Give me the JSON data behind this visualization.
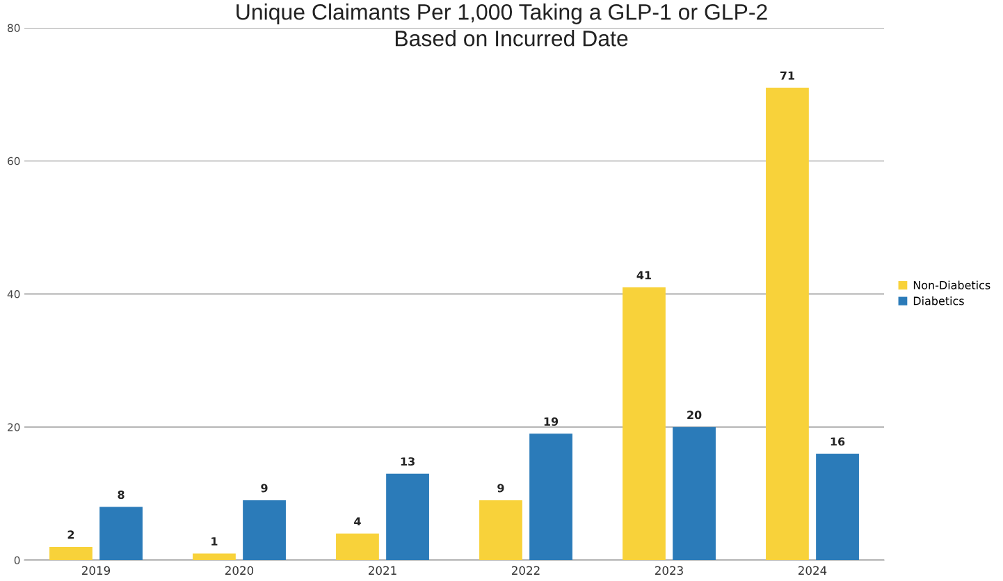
{
  "chart_data": {
    "type": "bar",
    "title": "Unique Claimants Per 1,000 Taking a GLP-1 or GLP-2",
    "subtitle": "Based on Incurred Date",
    "categories": [
      "2019",
      "2020",
      "2021",
      "2022",
      "2023",
      "2024"
    ],
    "series": [
      {
        "name": "Non-Diabetics",
        "color": "#f8d23a",
        "values": [
          2,
          1,
          4,
          9,
          41,
          71
        ]
      },
      {
        "name": "Diabetics",
        "color": "#2b7bb9",
        "values": [
          8,
          9,
          13,
          19,
          20,
          16
        ]
      }
    ],
    "ylim": [
      0,
      80
    ],
    "yticks": [
      0,
      20,
      40,
      60,
      80
    ],
    "grid": "y",
    "legend": "right",
    "data_labels": true
  }
}
